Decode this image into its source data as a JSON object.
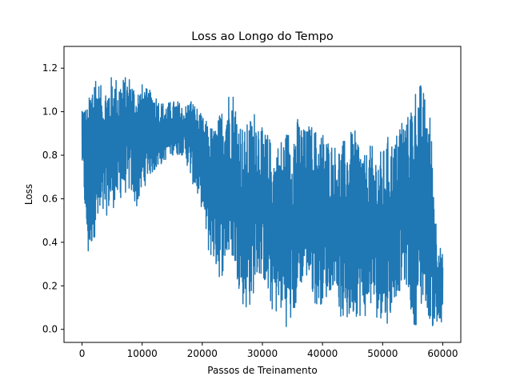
{
  "chart_data": {
    "type": "line",
    "title": "Loss ao Longo do Tempo",
    "xlabel": "Passos de Treinamento",
    "ylabel": "Loss",
    "xlim": [
      -3000,
      63000
    ],
    "ylim": [
      -0.06,
      1.3
    ],
    "xticks": [
      0,
      10000,
      20000,
      30000,
      40000,
      50000,
      60000
    ],
    "xtick_labels": [
      "0",
      "10000",
      "20000",
      "30000",
      "40000",
      "50000",
      "60000"
    ],
    "yticks": [
      0.0,
      0.2,
      0.4,
      0.6,
      0.8,
      1.0,
      1.2
    ],
    "ytick_labels": [
      "0.0",
      "0.2",
      "0.4",
      "0.6",
      "0.8",
      "1.0",
      "1.2"
    ],
    "grid": false,
    "line_color": "#1f77b4",
    "series": [
      {
        "x": [
          0,
          1000,
          2000,
          3000,
          4000,
          5000,
          6000,
          7000,
          8000,
          9000,
          10000,
          11000,
          12000,
          13000,
          14000,
          15000,
          16000,
          17000,
          18000,
          19000,
          20000,
          21000,
          22000,
          23000,
          24000,
          25000,
          26000,
          27000,
          28000,
          29000,
          30000,
          31000,
          32000,
          33000,
          34000,
          35000,
          36000,
          37000,
          38000,
          39000,
          40000,
          41000,
          42000,
          43000,
          44000,
          45000,
          46000,
          47000,
          48000,
          49000,
          50000,
          51000,
          52000,
          53000,
          54000,
          55000,
          56000,
          57000,
          58000,
          59000,
          60000
        ],
        "upper": [
          1.05,
          1.03,
          1.24,
          1.12,
          1.13,
          1.17,
          1.16,
          1.16,
          1.17,
          1.12,
          1.13,
          1.1,
          1.1,
          1.05,
          1.04,
          1.05,
          1.05,
          1.02,
          1.07,
          1.03,
          0.98,
          0.95,
          0.93,
          1.0,
          1.1,
          1.12,
          1.0,
          0.92,
          0.98,
          1.03,
          0.92,
          0.9,
          0.83,
          0.88,
          0.92,
          0.95,
          0.98,
          0.92,
          0.95,
          0.92,
          0.92,
          0.88,
          0.85,
          0.86,
          0.88,
          0.92,
          0.9,
          0.8,
          0.85,
          0.82,
          0.82,
          0.9,
          0.86,
          1.0,
          0.96,
          1.09,
          1.16,
          1.08,
          0.98,
          0.45,
          0.34
        ],
        "lower": [
          0.75,
          0.3,
          0.42,
          0.45,
          0.52,
          0.55,
          0.58,
          0.62,
          0.63,
          0.55,
          0.62,
          0.7,
          0.72,
          0.75,
          0.78,
          0.8,
          0.8,
          0.8,
          0.7,
          0.62,
          0.55,
          0.35,
          0.3,
          0.22,
          0.3,
          0.32,
          0.2,
          0.08,
          0.1,
          0.22,
          0.25,
          0.12,
          0.06,
          0.08,
          0.01,
          0.02,
          0.15,
          0.25,
          0.18,
          0.1,
          0.12,
          0.15,
          0.22,
          0.05,
          0.01,
          0.06,
          0.06,
          0.05,
          0.1,
          0.05,
          0.05,
          0.02,
          0.14,
          0.18,
          0.2,
          0.02,
          0.02,
          0.14,
          0.01,
          0.0,
          0.0
        ]
      }
    ]
  }
}
